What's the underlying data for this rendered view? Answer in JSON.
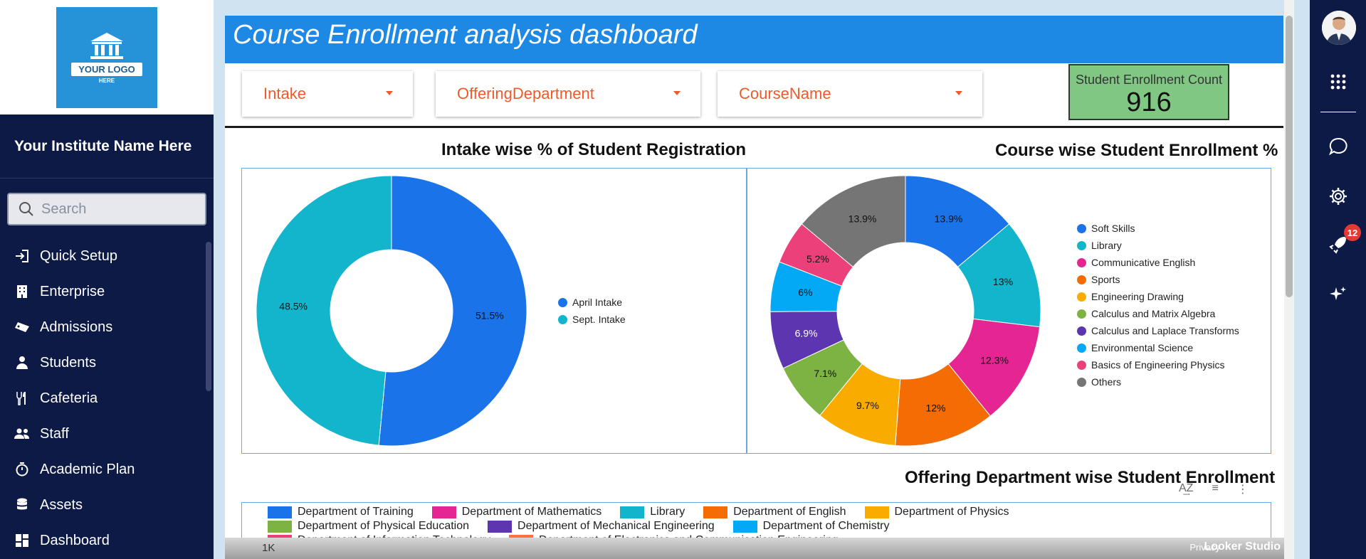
{
  "sidebar": {
    "logo": {
      "banner": "YOUR LOGO",
      "sub": "HERE"
    },
    "institute_name": "Your Institute Name Here",
    "search_placeholder": "Search",
    "items": [
      {
        "label": "Quick Setup",
        "icon": "sign-in-icon"
      },
      {
        "label": "Enterprise",
        "icon": "building-icon"
      },
      {
        "label": "Admissions",
        "icon": "ticket-icon"
      },
      {
        "label": "Students",
        "icon": "student-icon"
      },
      {
        "label": "Cafeteria",
        "icon": "utensils-icon"
      },
      {
        "label": "Staff",
        "icon": "users-icon"
      },
      {
        "label": "Academic Plan",
        "icon": "stopwatch-icon"
      },
      {
        "label": "Assets",
        "icon": "database-icon"
      },
      {
        "label": "Dashboard",
        "icon": "dashboard-icon"
      }
    ]
  },
  "dashboard": {
    "title": "Course Enrollment analysis dashboard",
    "filters": [
      "Intake",
      "OfferingDepartment",
      "CourseName"
    ],
    "kpi": {
      "label": "Student Enrollment Count",
      "value": "916"
    },
    "footer": {
      "axis_tick": "1K",
      "privacy": "Privacy",
      "brand": "Looker Studio"
    }
  },
  "chart_data": [
    {
      "type": "pie",
      "title": "Intake wise % of Student Registration",
      "donut": true,
      "categories": [
        "April Intake",
        "Sept. Intake"
      ],
      "values": [
        51.5,
        48.5
      ],
      "labels": [
        "51.5%",
        "48.5%"
      ],
      "colors": [
        "#1a73e8",
        "#12b5cb"
      ],
      "legend": "right"
    },
    {
      "type": "pie",
      "title": "Course wise Student Enrollment %",
      "donut": true,
      "categories": [
        "Soft Skills",
        "Library",
        "Communicative English",
        "Sports",
        "Engineering Drawing",
        "Calculus and Matrix Algebra",
        "Calculus and Laplace Transforms",
        "Environmental Science",
        "Basics of Engineering Physics",
        "Others"
      ],
      "values": [
        13.9,
        13,
        12.3,
        12,
        9.7,
        7.1,
        6.9,
        6,
        5.2,
        13.9
      ],
      "labels": [
        "13.9%",
        "13%",
        "12.3%",
        "12%",
        "9.7%",
        "7.1%",
        "6.9%",
        "6%",
        "5.2%",
        "13.9%"
      ],
      "colors": [
        "#1a73e8",
        "#12b5cb",
        "#e52592",
        "#f36c04",
        "#f9ab00",
        "#7cb342",
        "#5e35b1",
        "#03a9f4",
        "#ec407a",
        "#757575"
      ],
      "legend": "right"
    },
    {
      "type": "bar",
      "title": "Offering Department wise Student Enrollment",
      "series": [
        {
          "name": "Department of Training",
          "color": "#1a73e8"
        },
        {
          "name": "Department of Mathematics",
          "color": "#e52592"
        },
        {
          "name": "Library",
          "color": "#12b5cb"
        },
        {
          "name": "Department of English",
          "color": "#f36c04"
        },
        {
          "name": "Department of Physics",
          "color": "#f9ab00"
        },
        {
          "name": "Department of Physical Education",
          "color": "#7cb342"
        },
        {
          "name": "Department of Mechanical Engineering",
          "color": "#5e35b1"
        },
        {
          "name": "Department of Chemistry",
          "color": "#03a9f4"
        },
        {
          "name": "Department of Information Technology",
          "color": "#ec407a"
        },
        {
          "name": "Department of Electronics and Communication Engineering",
          "color": "#ff7043"
        }
      ],
      "legend": "top"
    }
  ],
  "rail": {
    "notification_count": "12"
  }
}
